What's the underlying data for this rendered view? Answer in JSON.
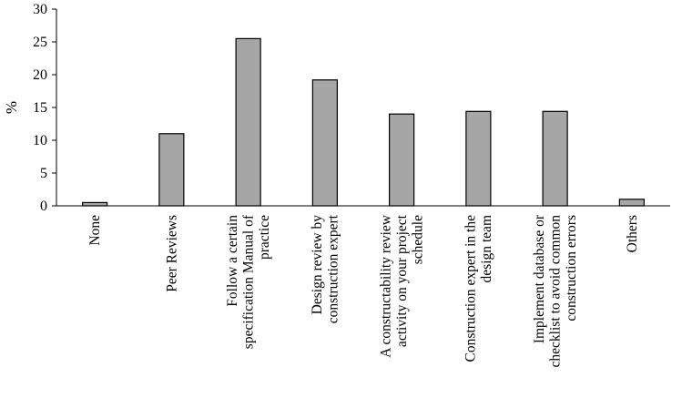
{
  "chart_data": {
    "type": "bar",
    "ylabel": "%",
    "xlabel": "",
    "ylim": [
      0,
      30
    ],
    "yticks": [
      0,
      5,
      10,
      15,
      20,
      25,
      30
    ],
    "grid": false,
    "bar_color": "#a6a6a6",
    "bar_edge_color": "#000000",
    "categories": [
      [
        "None"
      ],
      [
        "Peer Reviews"
      ],
      [
        "Follow a certain",
        "specification Manual of",
        "practice"
      ],
      [
        "Design review by",
        "construction expert"
      ],
      [
        "A constructability review",
        "activity on your project",
        "schedule"
      ],
      [
        "Construction expert in the",
        "design team"
      ],
      [
        "Implement database or",
        "checklist to avoid common",
        "construction errors"
      ],
      [
        "Others"
      ]
    ],
    "values": [
      0.5,
      11,
      25.5,
      19.2,
      14,
      14.4,
      14.4,
      1
    ]
  }
}
